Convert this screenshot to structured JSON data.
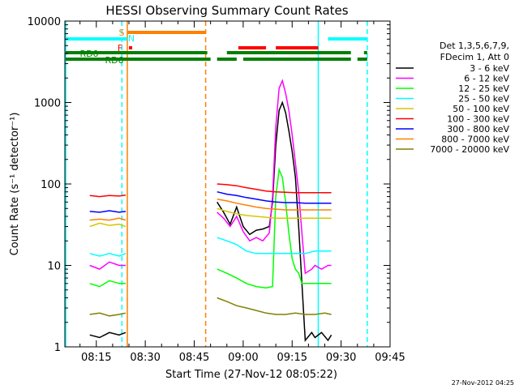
{
  "chart_data": {
    "type": "line",
    "title": "HESSI Observing Summary Count Rates",
    "xlabel": "Start Time (27-Nov-12 08:05:22)",
    "ylabel": "Count Rate (s⁻¹ detector⁻¹)",
    "ylog": true,
    "ylim": [
      1,
      10000
    ],
    "xlim": [
      "08:05:22",
      "09:45:00"
    ],
    "x_ticks": [
      "08:15",
      "08:30",
      "08:45",
      "09:00",
      "09:15",
      "09:30",
      "09:45"
    ],
    "y_ticks": [
      "1",
      "10",
      "100",
      "1000",
      "10000"
    ],
    "legend": {
      "placement": "right",
      "header": [
        "Det 1,3,5,6,7,9,",
        "FDecim 1, Att 0"
      ],
      "entries": [
        {
          "label": "3 - 6 keV",
          "color": "#000000"
        },
        {
          "label": "6 - 12 keV",
          "color": "#ff00ff"
        },
        {
          "label": "12 - 25 keV",
          "color": "#00ff00"
        },
        {
          "label": "25 - 50 keV",
          "color": "#00ffff"
        },
        {
          "label": "50 - 100 keV",
          "color": "#d4c800"
        },
        {
          "label": "100 - 300 keV",
          "color": "#ff0000"
        },
        {
          "label": "300 - 800 keV",
          "color": "#0000ff"
        },
        {
          "label": "800 - 7000 keV",
          "color": "#ff8000"
        },
        {
          "label": "7000 - 20000 keV",
          "color": "#808000"
        }
      ]
    },
    "flag_labels": {
      "saa": "S",
      "night": "N",
      "flare": "F",
      "rd0": "RD0",
      "rd6": "RD6"
    },
    "flag_bars": {
      "saa": [
        [
          "08:24:30",
          "08:48:30"
        ]
      ],
      "night": [
        [
          "08:05:22",
          "08:24:30"
        ],
        [
          "09:26:00",
          "09:38:00"
        ]
      ],
      "flare": [
        [
          "08:25:00",
          "08:26:00"
        ],
        [
          "08:58:30",
          "09:07:00"
        ],
        [
          "09:10:00",
          "09:23:00"
        ]
      ],
      "rd0": [
        [
          "08:05:22",
          "08:49:00"
        ],
        [
          "08:55:00",
          "09:33:00"
        ],
        [
          "09:37:00",
          "09:38:00"
        ]
      ],
      "rd6": [
        [
          "08:05:22",
          "08:50:00"
        ],
        [
          "08:52:00",
          "08:58:00"
        ],
        [
          "09:00:00",
          "09:33:00"
        ],
        [
          "09:35:00",
          "09:38:00"
        ]
      ]
    },
    "vlines": [
      {
        "t": "08:05:22",
        "color": "#00ffff",
        "style": "solid"
      },
      {
        "t": "08:22:50",
        "color": "#00ffff",
        "style": "dashed"
      },
      {
        "t": "08:24:30",
        "color": "#ff8000",
        "style": "solid"
      },
      {
        "t": "08:48:30",
        "color": "#ff8000",
        "style": "dashed"
      },
      {
        "t": "09:23:00",
        "color": "#00ffff",
        "style": "solid"
      },
      {
        "t": "09:38:00",
        "color": "#00ffff",
        "style": "dashed"
      }
    ],
    "segments": [
      {
        "t_start": "08:13:00",
        "t_end": "08:24:00",
        "series": {
          "3 - 6 keV": [
            [
              0,
              1.4
            ],
            [
              3,
              1.3
            ],
            [
              6,
              1.5
            ],
            [
              9,
              1.4
            ],
            [
              11,
              1.5
            ]
          ],
          "6 - 12 keV": [
            [
              0,
              10
            ],
            [
              3,
              9
            ],
            [
              6,
              11
            ],
            [
              9,
              10
            ],
            [
              11,
              10
            ]
          ],
          "12 - 25 keV": [
            [
              0,
              6
            ],
            [
              3,
              5.5
            ],
            [
              6,
              6.5
            ],
            [
              9,
              6
            ],
            [
              11,
              6
            ]
          ],
          "25 - 50 keV": [
            [
              0,
              14
            ],
            [
              3,
              13
            ],
            [
              6,
              14
            ],
            [
              9,
              13
            ],
            [
              11,
              14
            ]
          ],
          "50 - 100 keV": [
            [
              0,
              30
            ],
            [
              3,
              33
            ],
            [
              6,
              31
            ],
            [
              9,
              32
            ],
            [
              11,
              30
            ]
          ],
          "100 - 300 keV": [
            [
              0,
              72
            ],
            [
              3,
              70
            ],
            [
              6,
              72
            ],
            [
              9,
              71
            ],
            [
              11,
              73
            ]
          ],
          "300 - 800 keV": [
            [
              0,
              46
            ],
            [
              3,
              45
            ],
            [
              6,
              47
            ],
            [
              9,
              45
            ],
            [
              11,
              46
            ]
          ],
          "800 - 7000 keV": [
            [
              0,
              36
            ],
            [
              3,
              37
            ],
            [
              6,
              36
            ],
            [
              9,
              38
            ],
            [
              11,
              36
            ]
          ],
          "7000 - 20000 keV": [
            [
              0,
              2.5
            ],
            [
              3,
              2.6
            ],
            [
              6,
              2.4
            ],
            [
              9,
              2.5
            ],
            [
              11,
              2.6
            ]
          ]
        }
      },
      {
        "t_start": "08:52:00",
        "t_end": "09:27:00",
        "series": {
          "3 - 6 keV": [
            [
              0,
              60
            ],
            [
              2,
              45
            ],
            [
              4,
              32
            ],
            [
              6,
              52
            ],
            [
              8,
              30
            ],
            [
              10,
              24
            ],
            [
              12,
              27
            ],
            [
              14,
              28
            ],
            [
              16,
              30
            ],
            [
              17,
              60
            ],
            [
              18,
              300
            ],
            [
              19,
              800
            ],
            [
              20,
              1000
            ],
            [
              21,
              750
            ],
            [
              22,
              450
            ],
            [
              23,
              250
            ],
            [
              24,
              120
            ],
            [
              25,
              30
            ],
            [
              26,
              6
            ],
            [
              27,
              1.2
            ],
            [
              29,
              1.5
            ],
            [
              30,
              1.3
            ],
            [
              32,
              1.5
            ],
            [
              34,
              1.2
            ],
            [
              35,
              1.4
            ]
          ],
          "6 - 12 keV": [
            [
              0,
              45
            ],
            [
              2,
              38
            ],
            [
              4,
              30
            ],
            [
              6,
              40
            ],
            [
              8,
              26
            ],
            [
              10,
              20
            ],
            [
              12,
              22
            ],
            [
              14,
              20
            ],
            [
              16,
              25
            ],
            [
              17,
              70
            ],
            [
              18,
              500
            ],
            [
              19,
              1500
            ],
            [
              20,
              1850
            ],
            [
              21,
              1300
            ],
            [
              22,
              800
            ],
            [
              23,
              400
            ],
            [
              24,
              180
            ],
            [
              25,
              80
            ],
            [
              26,
              25
            ],
            [
              27,
              8
            ],
            [
              29,
              9
            ],
            [
              30,
              10
            ],
            [
              32,
              9
            ],
            [
              34,
              10
            ],
            [
              35,
              10
            ]
          ],
          "12 - 25 keV": [
            [
              0,
              9
            ],
            [
              3,
              8
            ],
            [
              6,
              7
            ],
            [
              9,
              6
            ],
            [
              12,
              5.5
            ],
            [
              15,
              5.3
            ],
            [
              17,
              5.5
            ],
            [
              18,
              70
            ],
            [
              19,
              150
            ],
            [
              20,
              120
            ],
            [
              21,
              60
            ],
            [
              22,
              25
            ],
            [
              23,
              12
            ],
            [
              24,
              9
            ],
            [
              25,
              8
            ],
            [
              26,
              6
            ],
            [
              27,
              6
            ],
            [
              30,
              6
            ],
            [
              33,
              6
            ],
            [
              35,
              6
            ]
          ],
          "25 - 50 keV": [
            [
              0,
              22
            ],
            [
              3,
              20
            ],
            [
              6,
              18
            ],
            [
              9,
              15
            ],
            [
              12,
              14
            ],
            [
              15,
              14
            ],
            [
              18,
              14
            ],
            [
              21,
              14
            ],
            [
              24,
              14
            ],
            [
              27,
              14
            ],
            [
              30,
              15
            ],
            [
              33,
              15
            ],
            [
              35,
              15
            ]
          ],
          "50 - 100 keV": [
            [
              0,
              50
            ],
            [
              3,
              46
            ],
            [
              6,
              43
            ],
            [
              9,
              41
            ],
            [
              12,
              40
            ],
            [
              15,
              39
            ],
            [
              18,
              38
            ],
            [
              21,
              38
            ],
            [
              24,
              38
            ],
            [
              27,
              38
            ],
            [
              30,
              38
            ],
            [
              33,
              38
            ],
            [
              35,
              38
            ]
          ],
          "100 - 300 keV": [
            [
              0,
              100
            ],
            [
              3,
              98
            ],
            [
              6,
              95
            ],
            [
              9,
              90
            ],
            [
              12,
              86
            ],
            [
              15,
              82
            ],
            [
              18,
              80
            ],
            [
              21,
              79
            ],
            [
              24,
              78
            ],
            [
              27,
              78
            ],
            [
              30,
              78
            ],
            [
              33,
              78
            ],
            [
              35,
              78
            ]
          ],
          "300 - 800 keV": [
            [
              0,
              80
            ],
            [
              3,
              75
            ],
            [
              6,
              72
            ],
            [
              9,
              68
            ],
            [
              12,
              65
            ],
            [
              15,
              62
            ],
            [
              18,
              60
            ],
            [
              21,
              59
            ],
            [
              24,
              59
            ],
            [
              27,
              58
            ],
            [
              30,
              58
            ],
            [
              33,
              58
            ],
            [
              35,
              58
            ]
          ],
          "800 - 7000 keV": [
            [
              0,
              65
            ],
            [
              3,
              62
            ],
            [
              6,
              58
            ],
            [
              9,
              55
            ],
            [
              12,
              52
            ],
            [
              15,
              50
            ],
            [
              18,
              49
            ],
            [
              21,
              48
            ],
            [
              24,
              48
            ],
            [
              27,
              48
            ],
            [
              30,
              48
            ],
            [
              33,
              48
            ],
            [
              35,
              48
            ]
          ],
          "7000 - 20000 keV": [
            [
              0,
              4
            ],
            [
              3,
              3.6
            ],
            [
              6,
              3.2
            ],
            [
              9,
              3
            ],
            [
              12,
              2.8
            ],
            [
              15,
              2.6
            ],
            [
              18,
              2.5
            ],
            [
              21,
              2.5
            ],
            [
              24,
              2.6
            ],
            [
              27,
              2.5
            ],
            [
              30,
              2.5
            ],
            [
              33,
              2.6
            ],
            [
              35,
              2.5
            ]
          ]
        }
      }
    ]
  },
  "footer_timestamp": "27-Nov-2012 04:25"
}
